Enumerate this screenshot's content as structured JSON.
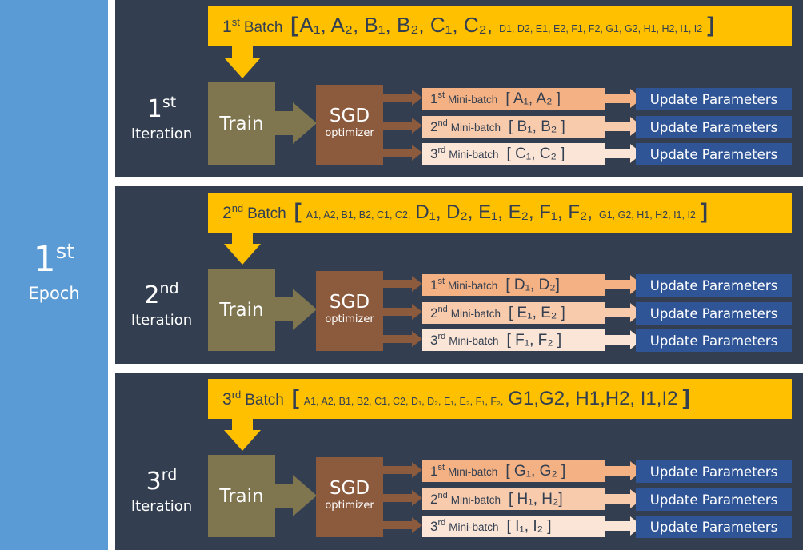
{
  "epoch": {
    "ordinal": "1",
    "suffix": "st",
    "word": "Epoch"
  },
  "common": {
    "batch_word": "Batch",
    "train_label": "Train",
    "sgd_label": "SGD",
    "optimizer_label": "optimizer",
    "mini_batch_word": "Mini-batch",
    "update_label": "Update Parameters",
    "iteration_word": "Iteration"
  },
  "iterations": [
    {
      "ordinal": "1",
      "suffix": "st",
      "batch": {
        "ordinal": "1",
        "suffix": "st",
        "open": "[",
        "close": "]",
        "big": "A₁, A₂, B₁, B₂, C₁, C₂,",
        "small": "D1, D2, E1, E2, F1, F2, G1, G2, H1, H2, I1, I2"
      },
      "minibatches": [
        {
          "ordinal": "1",
          "suffix": "st",
          "items": "[ A₁, A₂ ]"
        },
        {
          "ordinal": "2",
          "suffix": "nd",
          "items": "[ B₁, B₂ ]"
        },
        {
          "ordinal": "3",
          "suffix": "rd",
          "items": "[ C₁, C₂ ]"
        }
      ]
    },
    {
      "ordinal": "2",
      "suffix": "nd",
      "batch": {
        "ordinal": "2",
        "suffix": "nd",
        "open": "[",
        "close": "]",
        "small1": "A1, A2, B1, B2, C1, C2,",
        "big": "D₁, D₂, E₁, E₂, F₁, F₂,",
        "small2": "G1, G2, H1, H2, I1, I2"
      },
      "minibatches": [
        {
          "ordinal": "1",
          "suffix": "st",
          "items": "[ D₁, D₂]"
        },
        {
          "ordinal": "2",
          "suffix": "nd",
          "items": "[ E₁, E₂ ]"
        },
        {
          "ordinal": "3",
          "suffix": "rd",
          "items": "[ F₁, F₂ ]"
        }
      ]
    },
    {
      "ordinal": "3",
      "suffix": "rd",
      "batch": {
        "ordinal": "3",
        "suffix": "rd",
        "open": "[",
        "close": "]",
        "small": "A1, A2, B1, B2, C1, C2, D₁, D₂, E₁, E₂, F₁, F₂,",
        "big": "G1,G2, H1,H2, I1,I2"
      },
      "minibatches": [
        {
          "ordinal": "1",
          "suffix": "st",
          "items": "[ G₁, G₂ ]"
        },
        {
          "ordinal": "2",
          "suffix": "nd",
          "items": "[ H₁, H₂]"
        },
        {
          "ordinal": "3",
          "suffix": "rd",
          "items": "[ I₁, I₂ ]"
        }
      ]
    }
  ],
  "colors": {
    "epoch_bg": "#5b9bd5",
    "panel_bg": "#333f50",
    "batch_bar": "#ffc000",
    "train_box": "#7f7650",
    "sgd_box": "#8c5a3c",
    "minibatch_1": "#f4b183",
    "minibatch_2": "#f8cbad",
    "minibatch_3": "#fbe5d6",
    "update_box": "#2f5597"
  }
}
